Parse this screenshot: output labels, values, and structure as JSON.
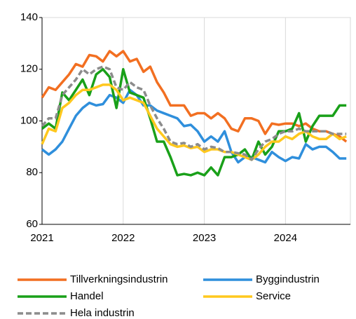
{
  "chart_data": {
    "type": "line",
    "x": [
      2021,
      2021.083,
      2021.167,
      2021.25,
      2021.333,
      2021.417,
      2021.5,
      2021.583,
      2021.667,
      2021.75,
      2021.833,
      2021.917,
      2022,
      2022.083,
      2022.167,
      2022.25,
      2022.333,
      2022.417,
      2022.5,
      2022.583,
      2022.667,
      2022.75,
      2022.833,
      2022.917,
      2023,
      2023.083,
      2023.167,
      2023.25,
      2023.333,
      2023.417,
      2023.5,
      2023.583,
      2023.667,
      2023.75,
      2023.833,
      2023.917,
      2024,
      2024.083,
      2024.167,
      2024.25,
      2024.333,
      2024.417,
      2024.5,
      2024.583,
      2024.667,
      2024.75
    ],
    "xlim": [
      2021,
      2024.8
    ],
    "xticks": [
      2021,
      2022,
      2023,
      2024
    ],
    "ylim": [
      60,
      140
    ],
    "yticks": [
      60,
      80,
      100,
      120,
      140
    ],
    "grid": "x",
    "legend": "bottom",
    "series": [
      {
        "name": "Tillverkningsindustrin",
        "color": "#f26f21",
        "dash": false,
        "values": [
          109,
          113,
          112,
          115,
          118,
          122,
          121,
          125.5,
          125,
          123,
          127,
          125,
          127,
          123,
          124,
          119,
          121,
          115,
          111,
          106,
          106,
          106,
          102,
          103,
          103,
          101,
          103,
          101,
          97,
          96,
          101,
          101,
          100,
          95,
          99,
          98.5,
          99,
          99,
          98,
          99,
          97,
          96,
          96,
          95,
          94,
          92
        ]
      },
      {
        "name": "Byggindustrin",
        "color": "#2f8fdc",
        "dash": false,
        "values": [
          89,
          87,
          89,
          92,
          97,
          102,
          105,
          107,
          106,
          106.5,
          110,
          109,
          107,
          112,
          110,
          106,
          106,
          104,
          103,
          102,
          101,
          98,
          98.5,
          96,
          92,
          94,
          92,
          96,
          88,
          84,
          86,
          86,
          85,
          84,
          88,
          86,
          84.5,
          86,
          85.5,
          91,
          89,
          90,
          90,
          88,
          85.5,
          85.5
        ]
      },
      {
        "name": "Handel",
        "color": "#19a019",
        "dash": false,
        "values": [
          97,
          99,
          97,
          111,
          108,
          112,
          116,
          110,
          118,
          120,
          117,
          105,
          120,
          111,
          110,
          109,
          101,
          92,
          92,
          86,
          79,
          79.5,
          79,
          80,
          79,
          82,
          79,
          86,
          86,
          87,
          89,
          85,
          92,
          87,
          90,
          96,
          96,
          97,
          103,
          92,
          98,
          102,
          102,
          102,
          106,
          106
        ]
      },
      {
        "name": "Service",
        "color": "#ffc81e",
        "dash": false,
        "values": [
          91,
          97,
          96,
          105,
          107,
          110,
          112,
          112,
          113,
          114,
          114,
          112,
          108,
          109,
          108,
          107,
          102,
          97,
          94,
          91,
          90,
          90.5,
          89.5,
          90,
          88,
          89,
          89,
          88,
          88,
          87,
          86,
          85,
          87,
          90,
          92,
          92,
          94,
          93,
          95,
          96,
          94,
          93,
          93,
          95,
          93,
          94
        ]
      },
      {
        "name": "Hela industrin",
        "color": "#8c8c8c",
        "dash": true,
        "values": [
          98,
          101,
          101,
          110,
          113,
          116,
          120,
          118,
          120,
          121,
          120,
          113,
          112,
          115,
          113,
          112,
          106,
          101,
          97,
          92,
          91,
          91.5,
          90,
          91,
          89,
          90,
          89.5,
          88,
          88,
          87.5,
          87,
          85,
          89,
          92,
          93,
          95,
          96,
          96,
          97,
          96,
          96,
          96,
          96,
          95,
          95,
          95
        ]
      }
    ]
  }
}
